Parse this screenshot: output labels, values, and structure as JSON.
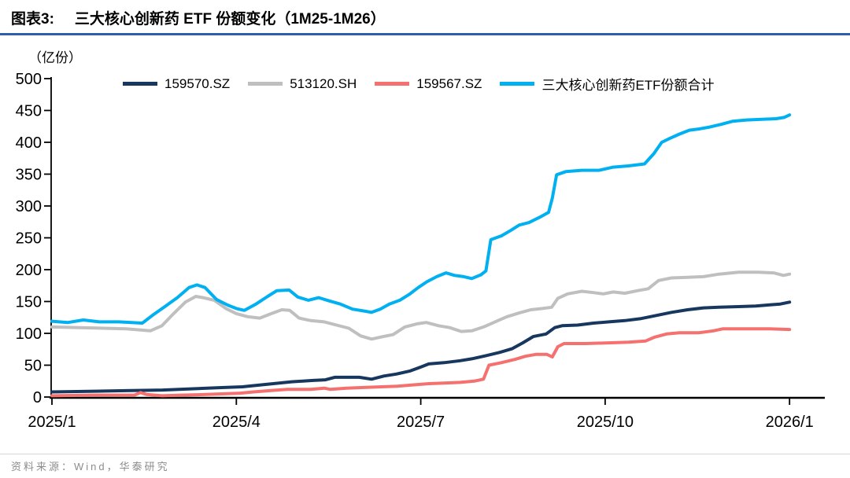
{
  "header": {
    "label": "图表3:",
    "title": "三大核心创新药 ETF 份额变化（1M25-1M26）",
    "rule_color": "#2f5cad"
  },
  "footer": {
    "source_text": "资料来源：Wind，华泰研究",
    "rule_color": "#d6d6d6"
  },
  "chart_data": {
    "type": "line",
    "unit_label": "（亿份）",
    "ylim": [
      0,
      500
    ],
    "yticks": [
      0,
      50,
      100,
      150,
      200,
      250,
      300,
      350,
      400,
      450,
      500
    ],
    "xticks": [
      {
        "month": 0,
        "label": "2025/1"
      },
      {
        "month": 3,
        "label": "2025/4"
      },
      {
        "month": 6,
        "label": "2025/7"
      },
      {
        "month": 9,
        "label": "2025/10"
      },
      {
        "month": 12,
        "label": "2026/1"
      }
    ],
    "x_unit": "months since 2025/1",
    "grid": false,
    "legend_position": "top",
    "axis_color": "#000000",
    "series": [
      {
        "name": "159570.SZ",
        "color": "#17375e",
        "points": [
          [
            0,
            8
          ],
          [
            0.6,
            9
          ],
          [
            1.2,
            10
          ],
          [
            1.8,
            11
          ],
          [
            2.3,
            13
          ],
          [
            2.8,
            15
          ],
          [
            3.1,
            16
          ],
          [
            3.3,
            18
          ],
          [
            3.6,
            21
          ],
          [
            3.9,
            24
          ],
          [
            4.25,
            26
          ],
          [
            4.45,
            27
          ],
          [
            4.6,
            31
          ],
          [
            5.0,
            31
          ],
          [
            5.2,
            28
          ],
          [
            5.4,
            33
          ],
          [
            5.6,
            36
          ],
          [
            5.83,
            41
          ],
          [
            6.0,
            47
          ],
          [
            6.13,
            52
          ],
          [
            6.38,
            54
          ],
          [
            6.64,
            57
          ],
          [
            6.83,
            60
          ],
          [
            7.06,
            65
          ],
          [
            7.28,
            70
          ],
          [
            7.49,
            76
          ],
          [
            7.66,
            85
          ],
          [
            7.83,
            95
          ],
          [
            8.04,
            99
          ],
          [
            8.18,
            109
          ],
          [
            8.3,
            112
          ],
          [
            8.55,
            113
          ],
          [
            8.81,
            116
          ],
          [
            9.06,
            118
          ],
          [
            9.32,
            120
          ],
          [
            9.57,
            123
          ],
          [
            9.83,
            128
          ],
          [
            10.08,
            133
          ],
          [
            10.34,
            137
          ],
          [
            10.6,
            140
          ],
          [
            10.85,
            141
          ],
          [
            11.17,
            142
          ],
          [
            11.45,
            143
          ],
          [
            11.7,
            145
          ],
          [
            11.85,
            146
          ],
          [
            12,
            149
          ]
        ]
      },
      {
        "name": "513120.SH",
        "color": "#bfbfbf",
        "points": [
          [
            0,
            110
          ],
          [
            0.45,
            109
          ],
          [
            0.83,
            108
          ],
          [
            1.21,
            107
          ],
          [
            1.6,
            104
          ],
          [
            1.79,
            112
          ],
          [
            1.98,
            131
          ],
          [
            2.17,
            149
          ],
          [
            2.34,
            158
          ],
          [
            2.46,
            156
          ],
          [
            2.64,
            152
          ],
          [
            2.83,
            139
          ],
          [
            3.0,
            131
          ],
          [
            3.19,
            126
          ],
          [
            3.38,
            124
          ],
          [
            3.57,
            131
          ],
          [
            3.74,
            137
          ],
          [
            3.87,
            136
          ],
          [
            4.02,
            124
          ],
          [
            4.21,
            120
          ],
          [
            4.43,
            118
          ],
          [
            4.63,
            113
          ],
          [
            4.83,
            108
          ],
          [
            5.02,
            96
          ],
          [
            5.2,
            91
          ],
          [
            5.39,
            95
          ],
          [
            5.55,
            98
          ],
          [
            5.74,
            110
          ],
          [
            5.94,
            115
          ],
          [
            6.09,
            117
          ],
          [
            6.29,
            112
          ],
          [
            6.47,
            109
          ],
          [
            6.66,
            103
          ],
          [
            6.83,
            104
          ],
          [
            7.02,
            110
          ],
          [
            7.21,
            118
          ],
          [
            7.4,
            126
          ],
          [
            7.6,
            132
          ],
          [
            7.79,
            137
          ],
          [
            7.98,
            139
          ],
          [
            8.13,
            141
          ],
          [
            8.23,
            155
          ],
          [
            8.39,
            162
          ],
          [
            8.62,
            166
          ],
          [
            8.81,
            164
          ],
          [
            8.97,
            162
          ],
          [
            9.13,
            165
          ],
          [
            9.32,
            163
          ],
          [
            9.53,
            167
          ],
          [
            9.7,
            170
          ],
          [
            9.87,
            183
          ],
          [
            10.08,
            187
          ],
          [
            10.34,
            188
          ],
          [
            10.6,
            189
          ],
          [
            10.85,
            193
          ],
          [
            11.17,
            196
          ],
          [
            11.49,
            196
          ],
          [
            11.74,
            195
          ],
          [
            11.9,
            191
          ],
          [
            12,
            193
          ]
        ]
      },
      {
        "name": "159567.SZ",
        "color": "#f4716f",
        "points": [
          [
            0,
            2
          ],
          [
            0.7,
            3
          ],
          [
            1.34,
            3
          ],
          [
            1.44,
            7
          ],
          [
            1.54,
            4
          ],
          [
            1.79,
            2
          ],
          [
            2.11,
            3
          ],
          [
            2.49,
            4
          ],
          [
            2.81,
            5
          ],
          [
            3.06,
            6
          ],
          [
            3.28,
            8
          ],
          [
            3.54,
            10
          ],
          [
            3.83,
            12
          ],
          [
            4.21,
            12
          ],
          [
            4.43,
            14
          ],
          [
            4.53,
            12
          ],
          [
            4.79,
            14
          ],
          [
            5.07,
            15
          ],
          [
            5.36,
            16
          ],
          [
            5.62,
            17
          ],
          [
            5.87,
            19
          ],
          [
            6.13,
            21
          ],
          [
            6.38,
            22
          ],
          [
            6.64,
            23
          ],
          [
            6.87,
            25
          ],
          [
            7.02,
            28
          ],
          [
            7.11,
            50
          ],
          [
            7.31,
            54
          ],
          [
            7.53,
            59
          ],
          [
            7.7,
            64
          ],
          [
            7.88,
            67
          ],
          [
            8.05,
            67
          ],
          [
            8.14,
            63
          ],
          [
            8.23,
            79
          ],
          [
            8.33,
            84
          ],
          [
            8.68,
            84
          ],
          [
            9.06,
            85
          ],
          [
            9.38,
            86
          ],
          [
            9.66,
            88
          ],
          [
            9.8,
            94
          ],
          [
            10.0,
            99
          ],
          [
            10.21,
            101
          ],
          [
            10.53,
            101
          ],
          [
            10.76,
            104
          ],
          [
            10.91,
            107
          ],
          [
            11.3,
            107
          ],
          [
            11.68,
            107
          ],
          [
            12,
            106
          ]
        ]
      },
      {
        "name": "三大核心创新药ETF份额合计",
        "color": "#00b0f0",
        "points": [
          [
            0,
            119
          ],
          [
            0.26,
            117
          ],
          [
            0.51,
            121
          ],
          [
            0.77,
            118
          ],
          [
            1.09,
            118
          ],
          [
            1.47,
            116
          ],
          [
            1.66,
            130
          ],
          [
            1.85,
            143
          ],
          [
            2.04,
            156
          ],
          [
            2.23,
            172
          ],
          [
            2.36,
            176
          ],
          [
            2.49,
            172
          ],
          [
            2.68,
            153
          ],
          [
            2.87,
            144
          ],
          [
            3.0,
            139
          ],
          [
            3.13,
            136
          ],
          [
            3.32,
            146
          ],
          [
            3.51,
            158
          ],
          [
            3.66,
            167
          ],
          [
            3.86,
            168
          ],
          [
            4.0,
            157
          ],
          [
            4.17,
            152
          ],
          [
            4.34,
            156
          ],
          [
            4.51,
            151
          ],
          [
            4.69,
            146
          ],
          [
            4.89,
            138
          ],
          [
            5.08,
            135
          ],
          [
            5.2,
            133
          ],
          [
            5.34,
            138
          ],
          [
            5.49,
            146
          ],
          [
            5.66,
            152
          ],
          [
            5.81,
            161
          ],
          [
            5.96,
            172
          ],
          [
            6.1,
            181
          ],
          [
            6.26,
            189
          ],
          [
            6.41,
            195
          ],
          [
            6.55,
            191
          ],
          [
            6.7,
            189
          ],
          [
            6.83,
            186
          ],
          [
            6.98,
            192
          ],
          [
            7.06,
            198
          ],
          [
            7.14,
            247
          ],
          [
            7.31,
            253
          ],
          [
            7.47,
            262
          ],
          [
            7.6,
            270
          ],
          [
            7.76,
            274
          ],
          [
            7.93,
            282
          ],
          [
            8.08,
            290
          ],
          [
            8.14,
            312
          ],
          [
            8.21,
            349
          ],
          [
            8.36,
            354
          ],
          [
            8.62,
            356
          ],
          [
            8.9,
            356
          ],
          [
            9.13,
            361
          ],
          [
            9.38,
            363
          ],
          [
            9.64,
            366
          ],
          [
            9.79,
            382
          ],
          [
            9.92,
            400
          ],
          [
            10.05,
            406
          ],
          [
            10.21,
            413
          ],
          [
            10.37,
            419
          ],
          [
            10.53,
            421
          ],
          [
            10.7,
            424
          ],
          [
            10.88,
            428
          ],
          [
            11.07,
            433
          ],
          [
            11.3,
            435
          ],
          [
            11.55,
            436
          ],
          [
            11.78,
            437
          ],
          [
            11.91,
            439
          ],
          [
            12,
            443
          ]
        ]
      }
    ]
  }
}
